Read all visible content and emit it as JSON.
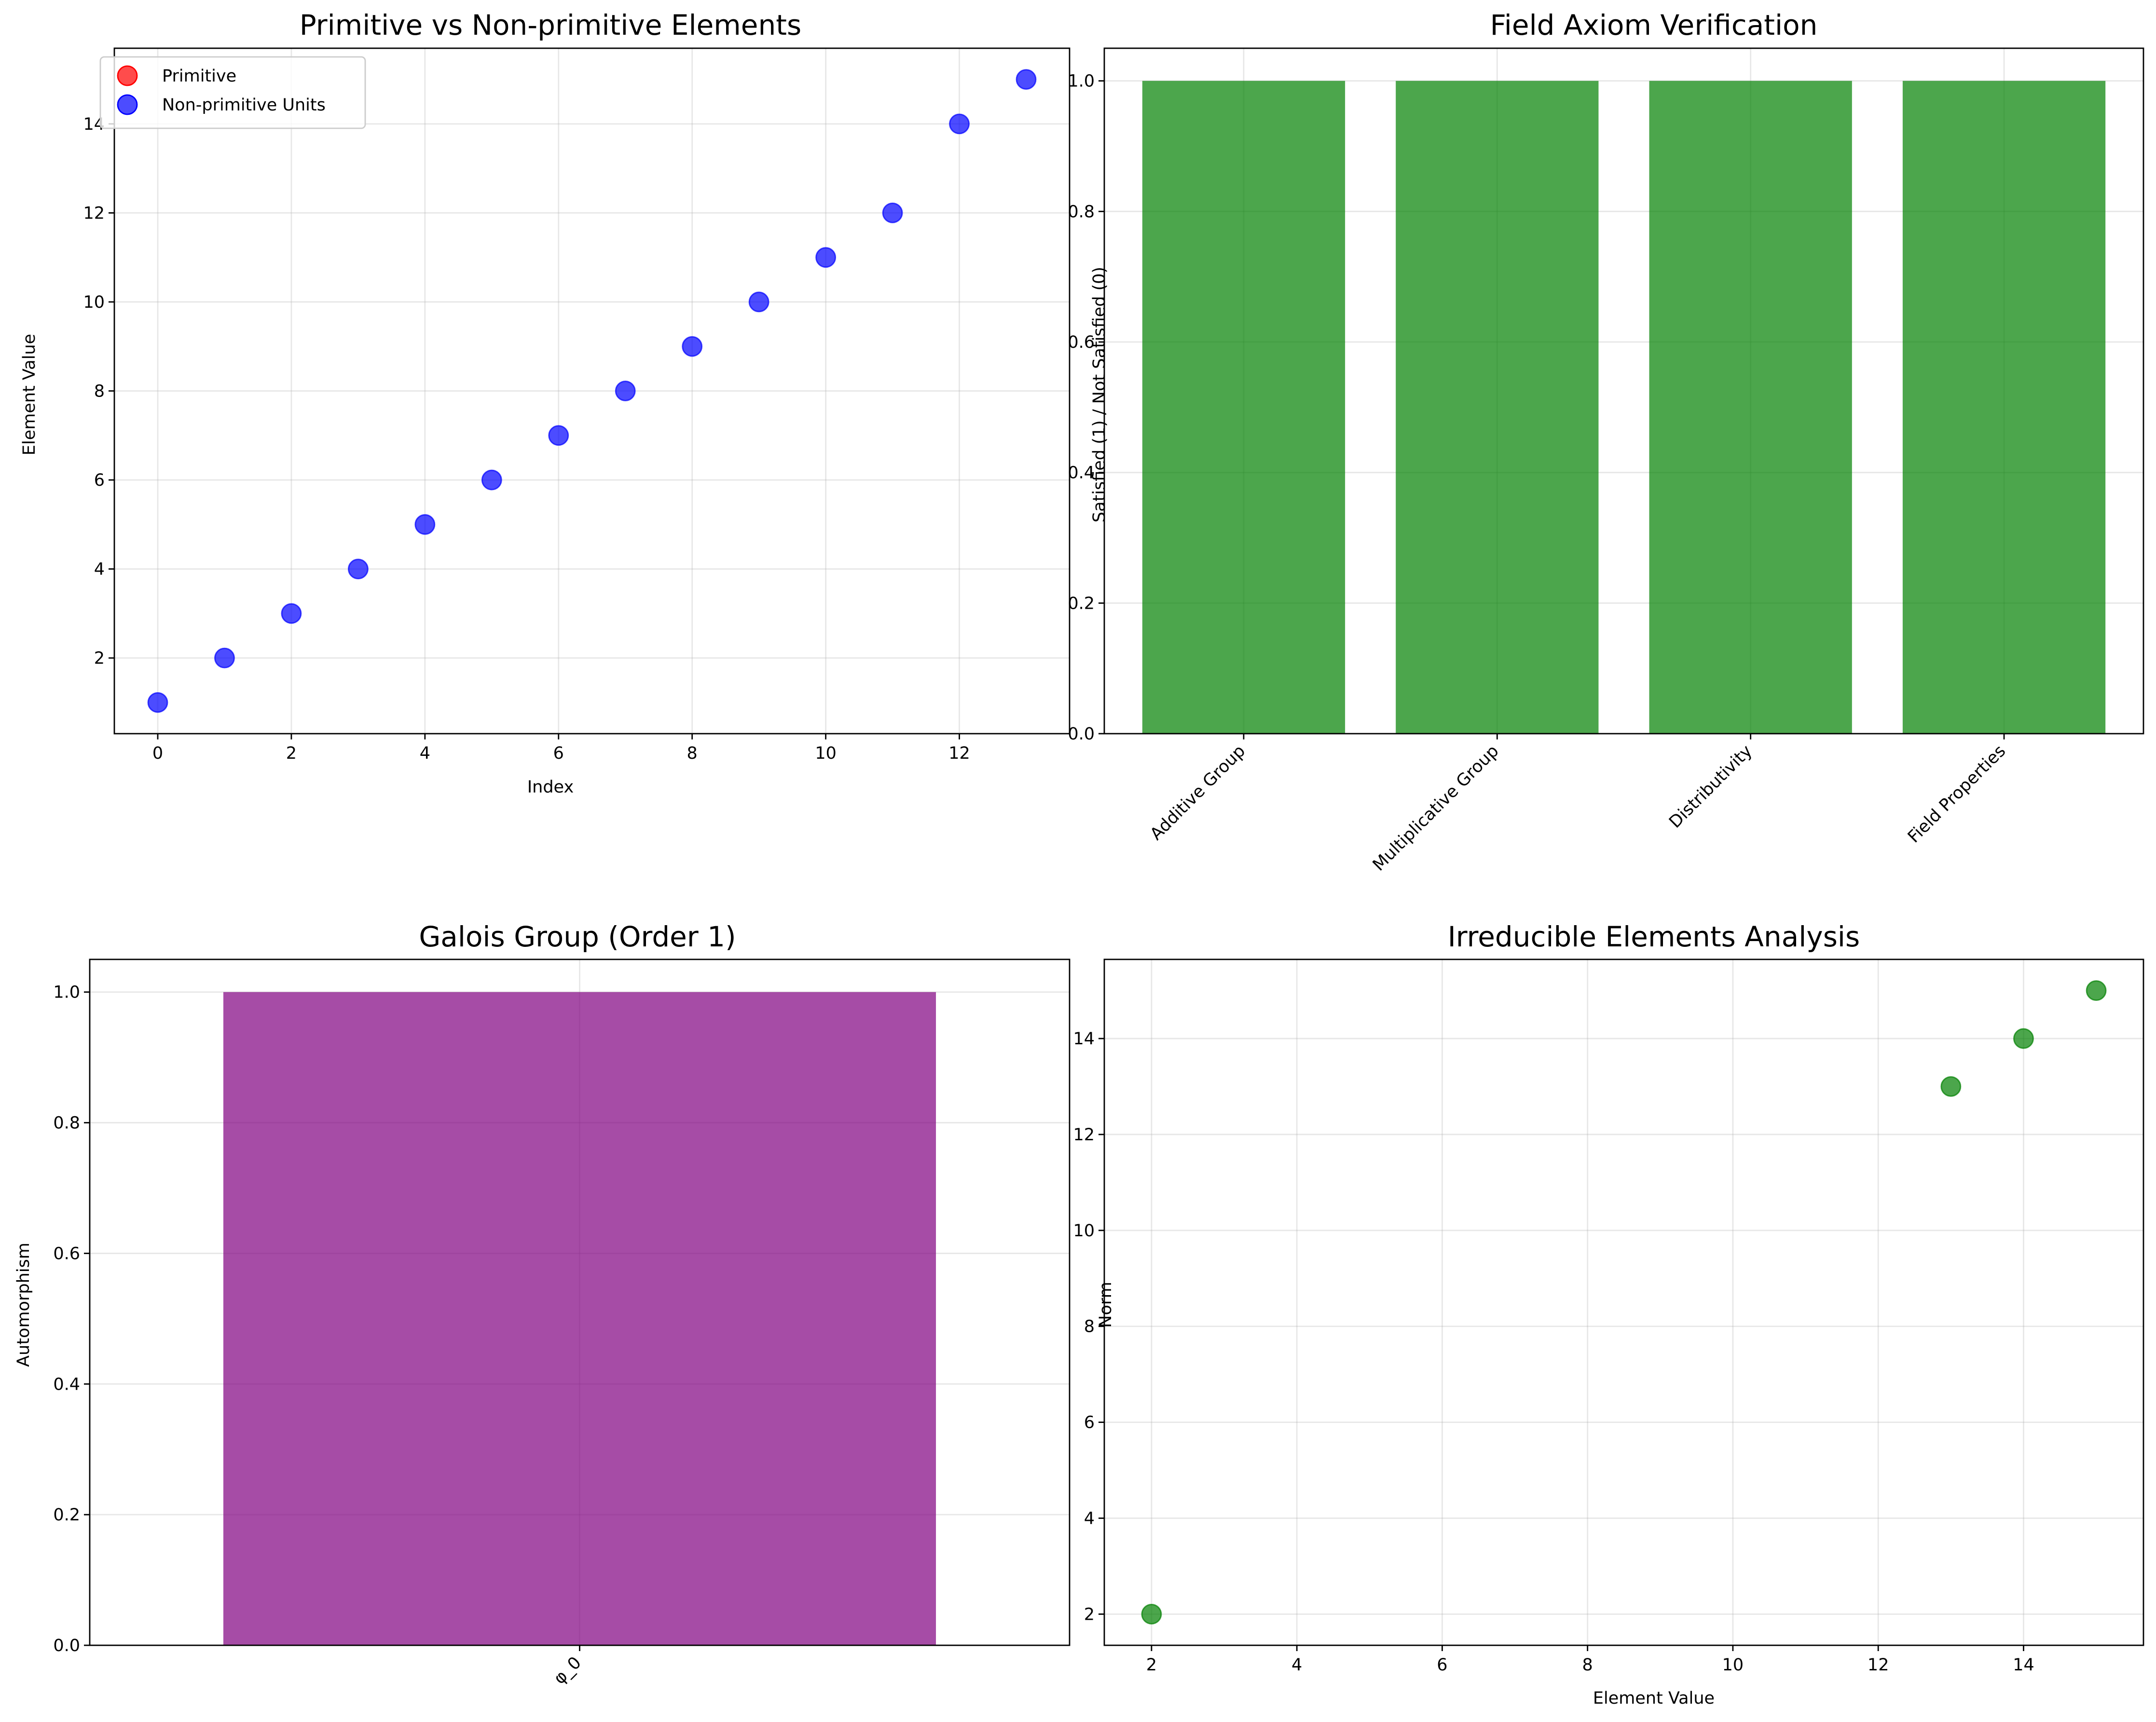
{
  "chart_data": [
    {
      "type": "scatter",
      "title": "Primitive vs Non-primitive Elements",
      "xlabel": "Index",
      "ylabel": "Element Value",
      "xlim": [
        -0.65,
        13.65
      ],
      "ylim": [
        0.3,
        15.7
      ],
      "xticks": [
        0,
        2,
        4,
        6,
        8,
        10,
        12
      ],
      "yticks": [
        2,
        4,
        6,
        8,
        10,
        12,
        14
      ],
      "grid": true,
      "legend": {
        "placement": "upper-left"
      },
      "series": [
        {
          "name": "Primitive",
          "color": "#ff0000",
          "x": [],
          "y": []
        },
        {
          "name": "Non-primitive Units",
          "color": "#0000ff",
          "x": [
            0,
            1,
            2,
            3,
            4,
            5,
            6,
            7,
            8,
            9,
            10,
            11,
            12,
            13
          ],
          "y": [
            1,
            2,
            3,
            4,
            5,
            6,
            7,
            8,
            9,
            10,
            11,
            12,
            14,
            15
          ]
        }
      ]
    },
    {
      "type": "bar",
      "title": "Field Axiom Verification",
      "xlabel": "",
      "ylabel": "Satisfied (1) / Not Satisfied (0)",
      "categories": [
        "Additive Group",
        "Multiplicative Group",
        "Distributivity",
        "Field Properties"
      ],
      "values": [
        1,
        1,
        1,
        1
      ],
      "color": "#008000",
      "ylim": [
        0,
        1.05
      ],
      "yticks": [
        0.0,
        0.2,
        0.4,
        0.6,
        0.8,
        1.0
      ],
      "grid": true
    },
    {
      "type": "bar",
      "title": "Galois Group (Order 1)",
      "xlabel": "",
      "ylabel": "Automorphism",
      "categories": [
        "φ_0"
      ],
      "values": [
        1
      ],
      "color": "#800080",
      "ylim": [
        0,
        1.05
      ],
      "yticks": [
        0.0,
        0.2,
        0.4,
        0.6,
        0.8,
        1.0
      ],
      "grid": true
    },
    {
      "type": "scatter",
      "title": "Irreducible Elements Analysis",
      "xlabel": "Element Value",
      "ylabel": "Norm",
      "xlim": [
        1.35,
        15.65
      ],
      "ylim": [
        1.35,
        15.65
      ],
      "xticks": [
        2,
        4,
        6,
        8,
        10,
        12,
        14
      ],
      "yticks": [
        2,
        4,
        6,
        8,
        10,
        12,
        14
      ],
      "grid": true,
      "series": [
        {
          "color": "#008000",
          "x": [
            2,
            13,
            14,
            15
          ],
          "y": [
            2,
            13,
            14,
            15
          ]
        }
      ]
    }
  ]
}
